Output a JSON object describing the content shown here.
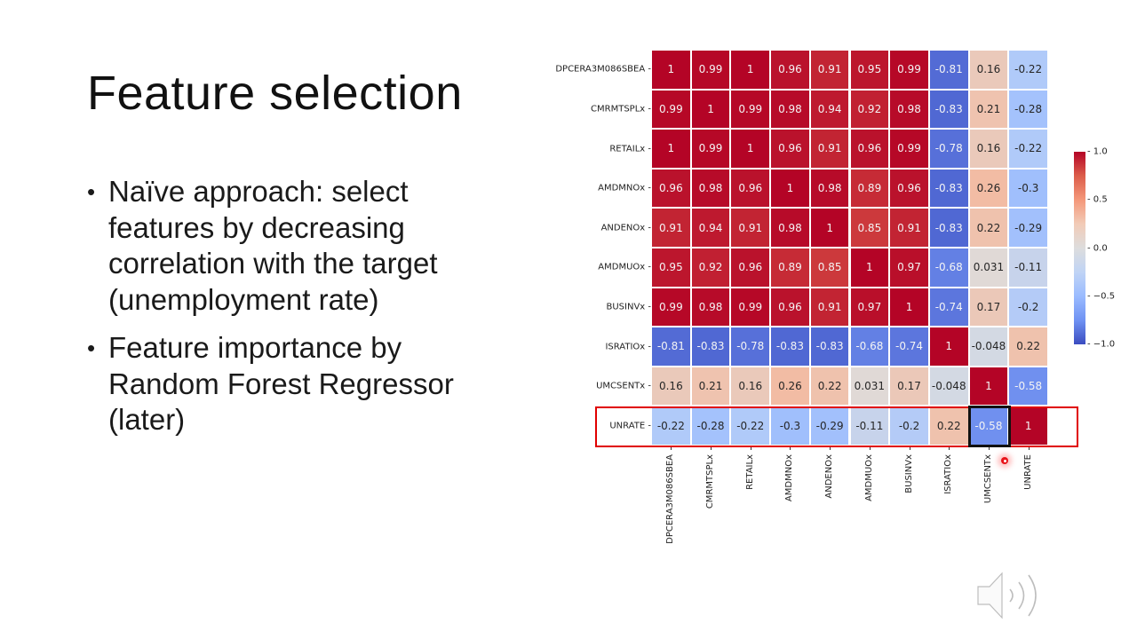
{
  "slide": {
    "title": "Feature selection",
    "bullets": [
      "Naïve approach: select features by decreasing correlation with the target (unemployment rate)",
      "Feature importance by Random Forest Regressor (later)"
    ],
    "audio_icon": "speaker-icon"
  },
  "chart_data": {
    "type": "heatmap",
    "title": "",
    "colormap": "coolwarm",
    "vmin": -1.0,
    "vmax": 1.0,
    "colorbar_ticks": [
      "1.0",
      "0.5",
      "0.0",
      "−0.5",
      "−1.0"
    ],
    "labels": [
      "DPCERA3M086SBEA",
      "CMRMTSPLx",
      "RETAILx",
      "AMDMNOx",
      "ANDENOx",
      "AMDMUOx",
      "BUSINVx",
      "ISRATIOx",
      "UMCSENTx",
      "UNRATE"
    ],
    "values": [
      [
        1,
        0.99,
        1,
        0.96,
        0.91,
        0.95,
        0.99,
        -0.81,
        0.16,
        -0.22
      ],
      [
        0.99,
        1,
        0.99,
        0.98,
        0.94,
        0.92,
        0.98,
        -0.83,
        0.21,
        -0.28
      ],
      [
        1,
        0.99,
        1,
        0.96,
        0.91,
        0.96,
        0.99,
        -0.78,
        0.16,
        -0.22
      ],
      [
        0.96,
        0.98,
        0.96,
        1,
        0.98,
        0.89,
        0.96,
        -0.83,
        0.26,
        -0.3
      ],
      [
        0.91,
        0.94,
        0.91,
        0.98,
        1,
        0.85,
        0.91,
        -0.83,
        0.22,
        -0.29
      ],
      [
        0.95,
        0.92,
        0.96,
        0.89,
        0.85,
        1,
        0.97,
        -0.68,
        0.031,
        -0.11
      ],
      [
        0.99,
        0.98,
        0.99,
        0.96,
        0.91,
        0.97,
        1,
        -0.74,
        0.17,
        -0.2
      ],
      [
        -0.81,
        -0.83,
        -0.78,
        -0.83,
        -0.83,
        -0.68,
        -0.74,
        1,
        -0.048,
        0.22
      ],
      [
        0.16,
        0.21,
        0.16,
        0.26,
        0.22,
        0.031,
        0.17,
        -0.048,
        1,
        -0.58
      ],
      [
        -0.22,
        -0.28,
        -0.22,
        -0.3,
        -0.29,
        -0.11,
        -0.2,
        0.22,
        -0.58,
        1
      ]
    ],
    "annotations": {
      "highlighted_row": "UNRATE",
      "highlighted_cell": {
        "row": "UNRATE",
        "col": "UMCSENTx",
        "value": -0.58
      },
      "highlight_colors": {
        "row_box": "#e00000",
        "cell_box": "#111111"
      }
    }
  }
}
